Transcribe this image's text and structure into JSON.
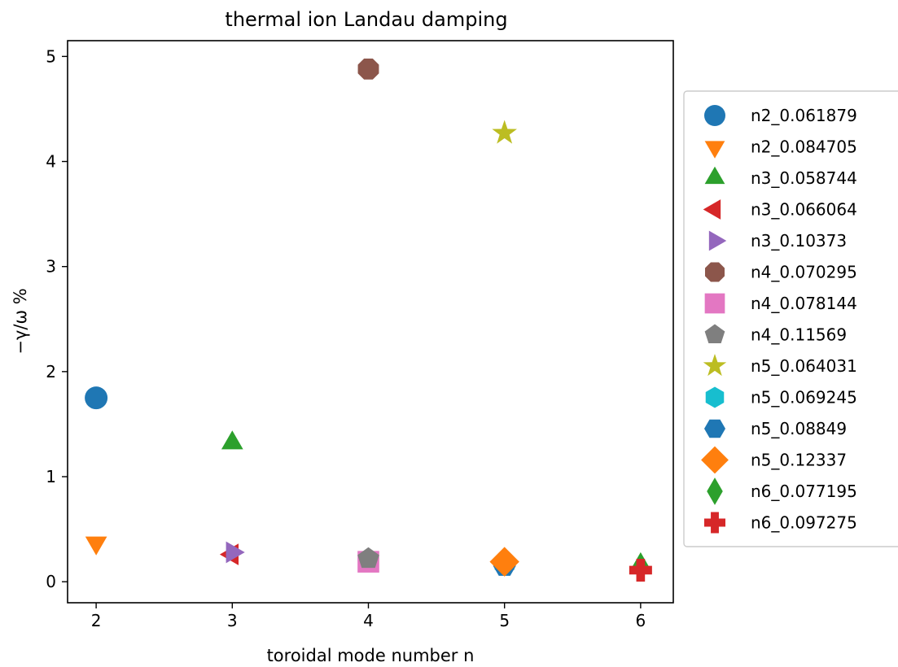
{
  "chart_data": {
    "type": "scatter",
    "title": "thermal ion Landau damping",
    "xlabel": "toroidal mode number n",
    "ylabel": "−γ/ω %",
    "xlim": [
      1.79,
      6.24
    ],
    "ylim": [
      -0.2,
      5.15
    ],
    "x_ticks": [
      2,
      3,
      4,
      5,
      6
    ],
    "y_ticks": [
      0,
      1,
      2,
      3,
      4,
      5
    ],
    "grid": false,
    "legend_position": "outside-right",
    "series": [
      {
        "name": "n2_0.061879",
        "marker": "circle",
        "color": "#1f77b4",
        "x": 2,
        "y": 1.75
      },
      {
        "name": "n2_0.084705",
        "marker": "triangle-down",
        "color": "#ff7f0e",
        "x": 2,
        "y": 0.37
      },
      {
        "name": "n3_0.058744",
        "marker": "triangle-up",
        "color": "#2ca02c",
        "x": 3,
        "y": 1.32
      },
      {
        "name": "n3_0.066064",
        "marker": "triangle-left",
        "color": "#d62728",
        "x": 3,
        "y": 0.26
      },
      {
        "name": "n3_0.10373",
        "marker": "triangle-right",
        "color": "#9467bd",
        "x": 3,
        "y": 0.28
      },
      {
        "name": "n4_0.070295",
        "marker": "octagon",
        "color": "#8c564b",
        "x": 4,
        "y": 4.88
      },
      {
        "name": "n4_0.078144",
        "marker": "square",
        "color": "#e377c2",
        "x": 4,
        "y": 0.19
      },
      {
        "name": "n4_0.11569",
        "marker": "pentagon",
        "color": "#7f7f7f",
        "x": 4,
        "y": 0.22
      },
      {
        "name": "n5_0.064031",
        "marker": "star",
        "color": "#bcbd22",
        "x": 5,
        "y": 4.27
      },
      {
        "name": "n5_0.069245",
        "marker": "hexagon1",
        "color": "#17becf",
        "x": 5,
        "y": 0.17
      },
      {
        "name": "n5_0.08849",
        "marker": "hexagon2",
        "color": "#1f77b4",
        "x": 5,
        "y": 0.15
      },
      {
        "name": "n5_0.12337",
        "marker": "diamond",
        "color": "#ff7f0e",
        "x": 5,
        "y": 0.19
      },
      {
        "name": "n6_0.077195",
        "marker": "thin-diamond",
        "color": "#2ca02c",
        "x": 6,
        "y": 0.14
      },
      {
        "name": "n6_0.097275",
        "marker": "plus-filled",
        "color": "#d62728",
        "x": 6,
        "y": 0.11
      }
    ]
  }
}
